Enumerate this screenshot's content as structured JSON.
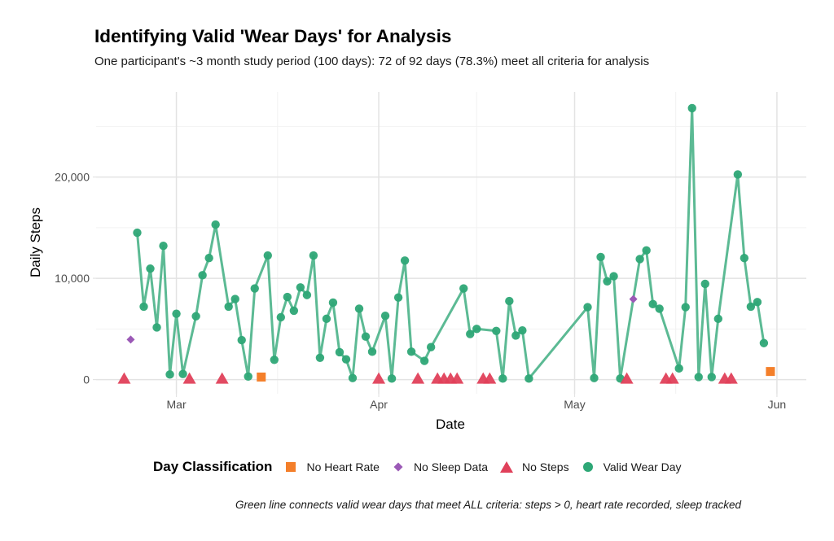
{
  "chart_data": {
    "type": "line",
    "title": "Identifying Valid 'Wear Days' for Analysis",
    "subtitle": "One participant's ~3 month study period (100 days): 72 of 92 days (78.3%) meet all criteria for analysis",
    "xlabel": "Date",
    "ylabel": "Daily Steps",
    "x_ticks": [
      {
        "label": "Mar",
        "day": 0
      },
      {
        "label": "Apr",
        "day": 31
      },
      {
        "label": "May",
        "day": 61
      },
      {
        "label": "Jun",
        "day": 92
      }
    ],
    "y_ticks": [
      {
        "label": "0",
        "value": 0
      },
      {
        "label": "10,000",
        "value": 10000
      },
      {
        "label": "20,000",
        "value": 20000
      }
    ],
    "x_domain_days_from_mar1": [
      -12.3,
      96.5
    ],
    "ylim": [
      -1400,
      28400
    ],
    "grid": true,
    "legend": {
      "title": "Day Classification",
      "position": "bottom",
      "entries": [
        {
          "key": "no_hr",
          "label": "No Heart Rate",
          "shape": "square",
          "color": "#F47F2A"
        },
        {
          "key": "no_sleep",
          "label": "No Sleep Data",
          "shape": "diamond",
          "color": "#9B59B6"
        },
        {
          "key": "no_steps",
          "label": "No Steps",
          "shape": "triangle",
          "color": "#E0405A"
        },
        {
          "key": "valid",
          "label": "Valid Wear Day",
          "shape": "circle",
          "color": "#2EA776"
        }
      ]
    },
    "line_color": "#5CBA94",
    "caption": "Green line connects valid wear days that meet ALL criteria: steps > 0, heart rate recorded, sleep tracked",
    "points": [
      {
        "date": "Feb 21",
        "day": -8,
        "steps": 0,
        "class": "no_steps"
      },
      {
        "date": "Feb 22",
        "day": -7,
        "steps": 3950,
        "class": "no_sleep"
      },
      {
        "date": "Feb 23",
        "day": -6,
        "steps": 14500,
        "class": "valid"
      },
      {
        "date": "Feb 24",
        "day": -5,
        "steps": 7200,
        "class": "valid"
      },
      {
        "date": "Feb 25",
        "day": -4,
        "steps": 10950,
        "class": "valid"
      },
      {
        "date": "Feb 26",
        "day": -3,
        "steps": 5150,
        "class": "valid"
      },
      {
        "date": "Feb 27",
        "day": -2,
        "steps": 13200,
        "class": "valid"
      },
      {
        "date": "Feb 28",
        "day": -1,
        "steps": 500,
        "class": "valid"
      },
      {
        "date": "Mar 1",
        "day": 0,
        "steps": 6500,
        "class": "valid"
      },
      {
        "date": "Mar 2",
        "day": 1,
        "steps": 550,
        "class": "valid"
      },
      {
        "date": "Mar 3",
        "day": 2,
        "steps": 0,
        "class": "no_steps"
      },
      {
        "date": "Mar 4",
        "day": 3,
        "steps": 6250,
        "class": "valid"
      },
      {
        "date": "Mar 5",
        "day": 4,
        "steps": 10300,
        "class": "valid"
      },
      {
        "date": "Mar 6",
        "day": 5,
        "steps": 12000,
        "class": "valid"
      },
      {
        "date": "Mar 7",
        "day": 6,
        "steps": 15300,
        "class": "valid"
      },
      {
        "date": "Mar 8",
        "day": 7,
        "steps": 0,
        "class": "no_steps"
      },
      {
        "date": "Mar 9",
        "day": 8,
        "steps": 7200,
        "class": "valid"
      },
      {
        "date": "Mar 10",
        "day": 9,
        "steps": 7950,
        "class": "valid"
      },
      {
        "date": "Mar 11",
        "day": 10,
        "steps": 3900,
        "class": "valid"
      },
      {
        "date": "Mar 12",
        "day": 11,
        "steps": 300,
        "class": "valid"
      },
      {
        "date": "Mar 13",
        "day": 12,
        "steps": 9000,
        "class": "valid"
      },
      {
        "date": "Mar 14",
        "day": 13,
        "steps": 250,
        "class": "no_hr"
      },
      {
        "date": "Mar 15",
        "day": 14,
        "steps": 12250,
        "class": "valid"
      },
      {
        "date": "Mar 16",
        "day": 15,
        "steps": 1950,
        "class": "valid"
      },
      {
        "date": "Mar 17",
        "day": 16,
        "steps": 6150,
        "class": "valid"
      },
      {
        "date": "Mar 18",
        "day": 17,
        "steps": 8150,
        "class": "valid"
      },
      {
        "date": "Mar 19",
        "day": 18,
        "steps": 6800,
        "class": "valid"
      },
      {
        "date": "Mar 20",
        "day": 19,
        "steps": 9100,
        "class": "valid"
      },
      {
        "date": "Mar 21",
        "day": 20,
        "steps": 8350,
        "class": "valid"
      },
      {
        "date": "Mar 22",
        "day": 21,
        "steps": 12250,
        "class": "valid"
      },
      {
        "date": "Mar 23",
        "day": 22,
        "steps": 2150,
        "class": "valid"
      },
      {
        "date": "Mar 24",
        "day": 23,
        "steps": 6000,
        "class": "valid"
      },
      {
        "date": "Mar 25",
        "day": 24,
        "steps": 7600,
        "class": "valid"
      },
      {
        "date": "Mar 26",
        "day": 25,
        "steps": 2700,
        "class": "valid"
      },
      {
        "date": "Mar 27",
        "day": 26,
        "steps": 2000,
        "class": "valid"
      },
      {
        "date": "Mar 28",
        "day": 27,
        "steps": 150,
        "class": "valid"
      },
      {
        "date": "Mar 29",
        "day": 28,
        "steps": 7000,
        "class": "valid"
      },
      {
        "date": "Mar 30",
        "day": 29,
        "steps": 4250,
        "class": "valid"
      },
      {
        "date": "Mar 31",
        "day": 30,
        "steps": 2750,
        "class": "valid"
      },
      {
        "date": "Apr 1",
        "day": 31,
        "steps": 0,
        "class": "no_steps"
      },
      {
        "date": "Apr 2",
        "day": 32,
        "steps": 6300,
        "class": "valid"
      },
      {
        "date": "Apr 3",
        "day": 33,
        "steps": 100,
        "class": "valid"
      },
      {
        "date": "Apr 4",
        "day": 34,
        "steps": 8100,
        "class": "valid"
      },
      {
        "date": "Apr 5",
        "day": 35,
        "steps": 11750,
        "class": "valid"
      },
      {
        "date": "Apr 6",
        "day": 36,
        "steps": 2750,
        "class": "valid"
      },
      {
        "date": "Apr 7",
        "day": 37,
        "steps": 0,
        "class": "no_steps"
      },
      {
        "date": "Apr 8",
        "day": 38,
        "steps": 1850,
        "class": "valid"
      },
      {
        "date": "Apr 9",
        "day": 39,
        "steps": 3200,
        "class": "valid"
      },
      {
        "date": "Apr 10",
        "day": 40,
        "steps": 0,
        "class": "no_steps"
      },
      {
        "date": "Apr 11",
        "day": 41,
        "steps": 0,
        "class": "no_steps"
      },
      {
        "date": "Apr 12",
        "day": 42,
        "steps": 0,
        "class": "no_steps"
      },
      {
        "date": "Apr 13",
        "day": 43,
        "steps": 0,
        "class": "no_steps"
      },
      {
        "date": "Apr 14",
        "day": 44,
        "steps": 9000,
        "class": "valid"
      },
      {
        "date": "Apr 15",
        "day": 45,
        "steps": 4500,
        "class": "valid"
      },
      {
        "date": "Apr 16",
        "day": 46,
        "steps": 5000,
        "class": "valid"
      },
      {
        "date": "Apr 17",
        "day": 47,
        "steps": 0,
        "class": "no_steps"
      },
      {
        "date": "Apr 18",
        "day": 48,
        "steps": 0,
        "class": "no_steps"
      },
      {
        "date": "Apr 19",
        "day": 49,
        "steps": 4800,
        "class": "valid"
      },
      {
        "date": "Apr 20",
        "day": 50,
        "steps": 100,
        "class": "valid"
      },
      {
        "date": "Apr 21",
        "day": 51,
        "steps": 7750,
        "class": "valid"
      },
      {
        "date": "Apr 22",
        "day": 52,
        "steps": 4350,
        "class": "valid"
      },
      {
        "date": "Apr 23",
        "day": 53,
        "steps": 4850,
        "class": "valid"
      },
      {
        "date": "Apr 24",
        "day": 54,
        "steps": 100,
        "class": "valid"
      },
      {
        "date": "May 3",
        "day": 63,
        "steps": 7150,
        "class": "valid"
      },
      {
        "date": "May 4",
        "day": 64,
        "steps": 150,
        "class": "valid"
      },
      {
        "date": "May 5",
        "day": 65,
        "steps": 12100,
        "class": "valid"
      },
      {
        "date": "May 6",
        "day": 66,
        "steps": 9700,
        "class": "valid"
      },
      {
        "date": "May 7",
        "day": 67,
        "steps": 10200,
        "class": "valid"
      },
      {
        "date": "May 8",
        "day": 68,
        "steps": 100,
        "class": "valid"
      },
      {
        "date": "May 9",
        "day": 69,
        "steps": 0,
        "class": "no_steps"
      },
      {
        "date": "May 10",
        "day": 70,
        "steps": 7950,
        "class": "no_sleep"
      },
      {
        "date": "May 11",
        "day": 71,
        "steps": 11900,
        "class": "valid"
      },
      {
        "date": "May 12",
        "day": 72,
        "steps": 12750,
        "class": "valid"
      },
      {
        "date": "May 13",
        "day": 73,
        "steps": 7450,
        "class": "valid"
      },
      {
        "date": "May 14",
        "day": 74,
        "steps": 7000,
        "class": "valid"
      },
      {
        "date": "May 15",
        "day": 75,
        "steps": 0,
        "class": "no_steps"
      },
      {
        "date": "May 16",
        "day": 76,
        "steps": 0,
        "class": "no_steps"
      },
      {
        "date": "May 17",
        "day": 77,
        "steps": 1100,
        "class": "valid"
      },
      {
        "date": "May 18",
        "day": 78,
        "steps": 7150,
        "class": "valid"
      },
      {
        "date": "May 19",
        "day": 79,
        "steps": 26800,
        "class": "valid"
      },
      {
        "date": "May 20",
        "day": 80,
        "steps": 250,
        "class": "valid"
      },
      {
        "date": "May 21",
        "day": 81,
        "steps": 9450,
        "class": "valid"
      },
      {
        "date": "May 22",
        "day": 82,
        "steps": 250,
        "class": "valid"
      },
      {
        "date": "May 23",
        "day": 83,
        "steps": 6000,
        "class": "valid"
      },
      {
        "date": "May 24",
        "day": 84,
        "steps": 0,
        "class": "no_steps"
      },
      {
        "date": "May 25",
        "day": 85,
        "steps": 0,
        "class": "no_steps"
      },
      {
        "date": "May 26",
        "day": 86,
        "steps": 20250,
        "class": "valid"
      },
      {
        "date": "May 27",
        "day": 87,
        "steps": 12000,
        "class": "valid"
      },
      {
        "date": "May 28",
        "day": 88,
        "steps": 7200,
        "class": "valid"
      },
      {
        "date": "May 29",
        "day": 89,
        "steps": 7650,
        "class": "valid"
      },
      {
        "date": "May 30",
        "day": 90,
        "steps": 3600,
        "class": "valid"
      },
      {
        "date": "May 31",
        "day": 91,
        "steps": 800,
        "class": "no_hr"
      }
    ]
  }
}
